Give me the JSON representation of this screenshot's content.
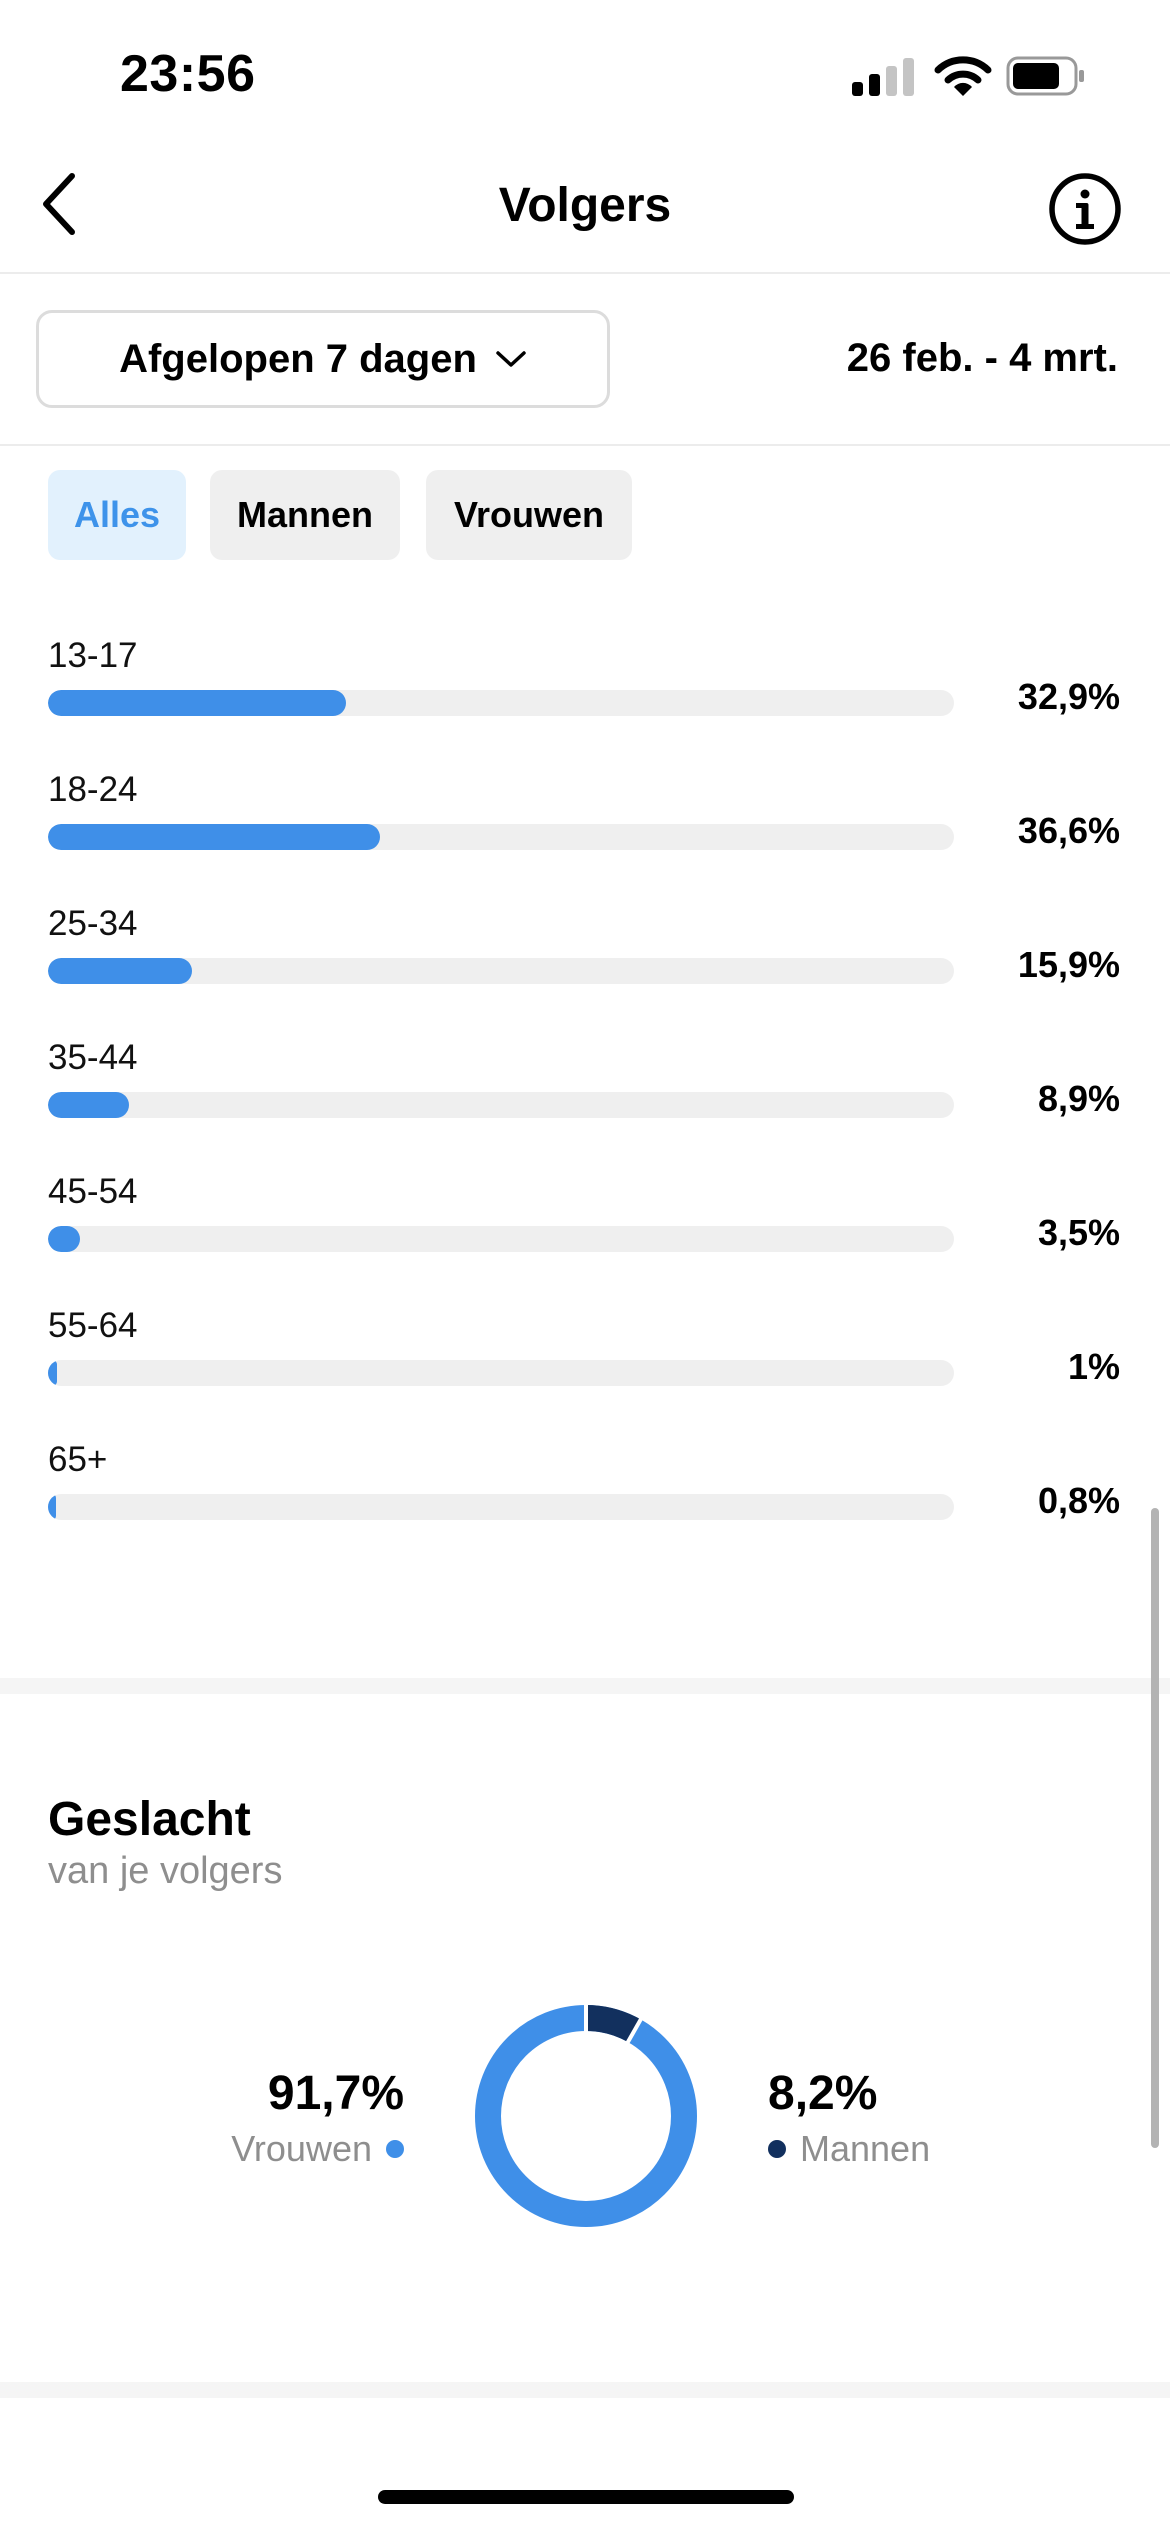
{
  "status_bar": {
    "time": "23:56"
  },
  "header": {
    "title": "Volgers"
  },
  "period": {
    "selected": "Afgelopen 7 dagen",
    "date_range": "26 feb. - 4 mrt."
  },
  "filters": [
    {
      "label": "Alles",
      "active": true
    },
    {
      "label": "Mannen",
      "active": false
    },
    {
      "label": "Vrouwen",
      "active": false
    }
  ],
  "age_groups": [
    {
      "label": "13-17",
      "value_text": "32,9%",
      "value": 32.9
    },
    {
      "label": "18-24",
      "value_text": "36,6%",
      "value": 36.6
    },
    {
      "label": "25-34",
      "value_text": "15,9%",
      "value": 15.9
    },
    {
      "label": "35-44",
      "value_text": "8,9%",
      "value": 8.9
    },
    {
      "label": "45-54",
      "value_text": "3,5%",
      "value": 3.5
    },
    {
      "label": "55-64",
      "value_text": "1%",
      "value": 1
    },
    {
      "label": "65+",
      "value_text": "0,8%",
      "value": 0.8
    }
  ],
  "gender": {
    "title": "Geslacht",
    "subtitle": "van je volgers",
    "women": {
      "label": "Vrouwen",
      "value_text": "91,7%",
      "value": 91.7,
      "color": "#3f8fe8"
    },
    "men": {
      "label": "Mannen",
      "value_text": "8,2%",
      "value": 8.2,
      "color": "#12305e"
    }
  },
  "colors": {
    "accent": "#3f8fe8",
    "chip_active_bg": "#e2f1fd",
    "track": "#efefef"
  },
  "icons": {
    "back": "chevron-left-icon",
    "info": "info-icon",
    "dropdown": "chevron-down-icon"
  }
}
